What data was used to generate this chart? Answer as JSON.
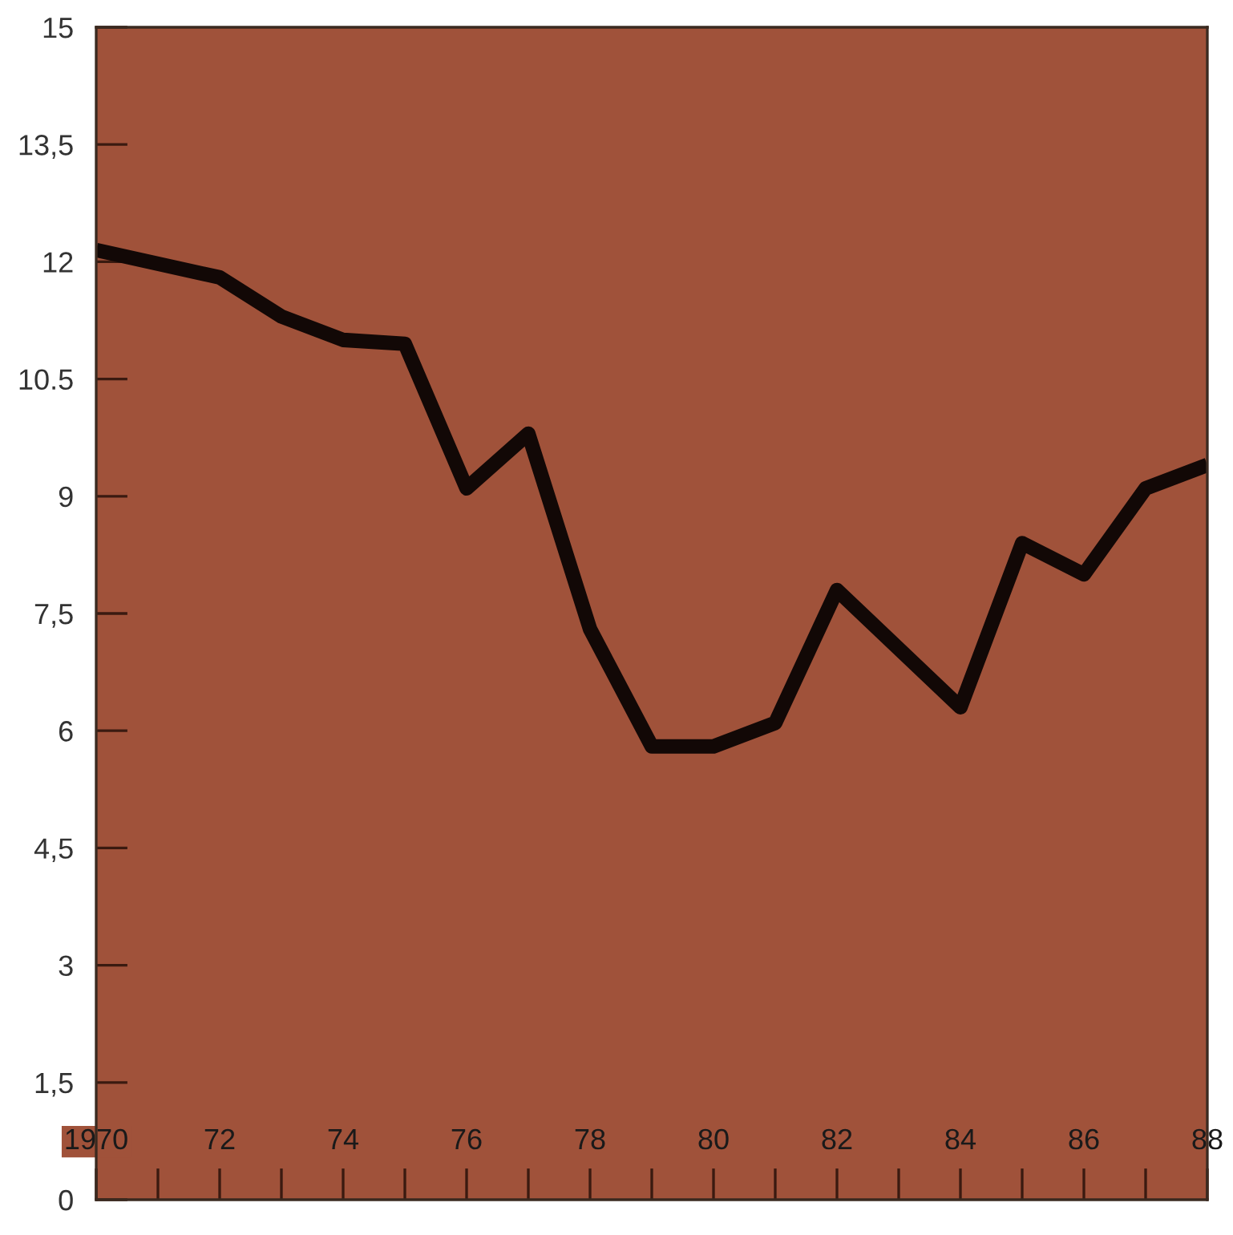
{
  "chart_data": {
    "type": "line",
    "x": [
      1970,
      1972,
      1973,
      1974,
      1975,
      1976,
      1977,
      1978,
      1979,
      1980,
      1981,
      1982,
      1984,
      1985,
      1986,
      1987,
      1988
    ],
    "series": [
      {
        "color": "#120806",
        "values": [
          12.15,
          11.8,
          11.3,
          11.0,
          10.95,
          9.1,
          9.8,
          7.3,
          5.8,
          5.8,
          6.1,
          7.8,
          6.3,
          8.4,
          8.0,
          9.1,
          9.4
        ]
      }
    ],
    "xlim": [
      1970,
      1988
    ],
    "ylim": [
      0,
      15
    ],
    "xticks": [
      {
        "value": 1970,
        "label": "1970"
      },
      {
        "value": 1972,
        "label": "72"
      },
      {
        "value": 1974,
        "label": "74"
      },
      {
        "value": 1976,
        "label": "76"
      },
      {
        "value": 1978,
        "label": "78"
      },
      {
        "value": 1980,
        "label": "80"
      },
      {
        "value": 1982,
        "label": "82"
      },
      {
        "value": 1984,
        "label": "84"
      },
      {
        "value": 1986,
        "label": "86"
      },
      {
        "value": 1988,
        "label": "88"
      }
    ],
    "yticks": [
      0,
      {
        "value": 1.5,
        "label": "1,5"
      },
      3,
      {
        "value": 4.5,
        "label": "4,5"
      },
      6,
      {
        "value": 7.5,
        "label": "7,5"
      },
      9,
      10.5,
      12,
      {
        "value": 13.5,
        "label": "13,5"
      },
      15
    ],
    "grid": false,
    "marker": "none",
    "line_style": "solid"
  }
}
